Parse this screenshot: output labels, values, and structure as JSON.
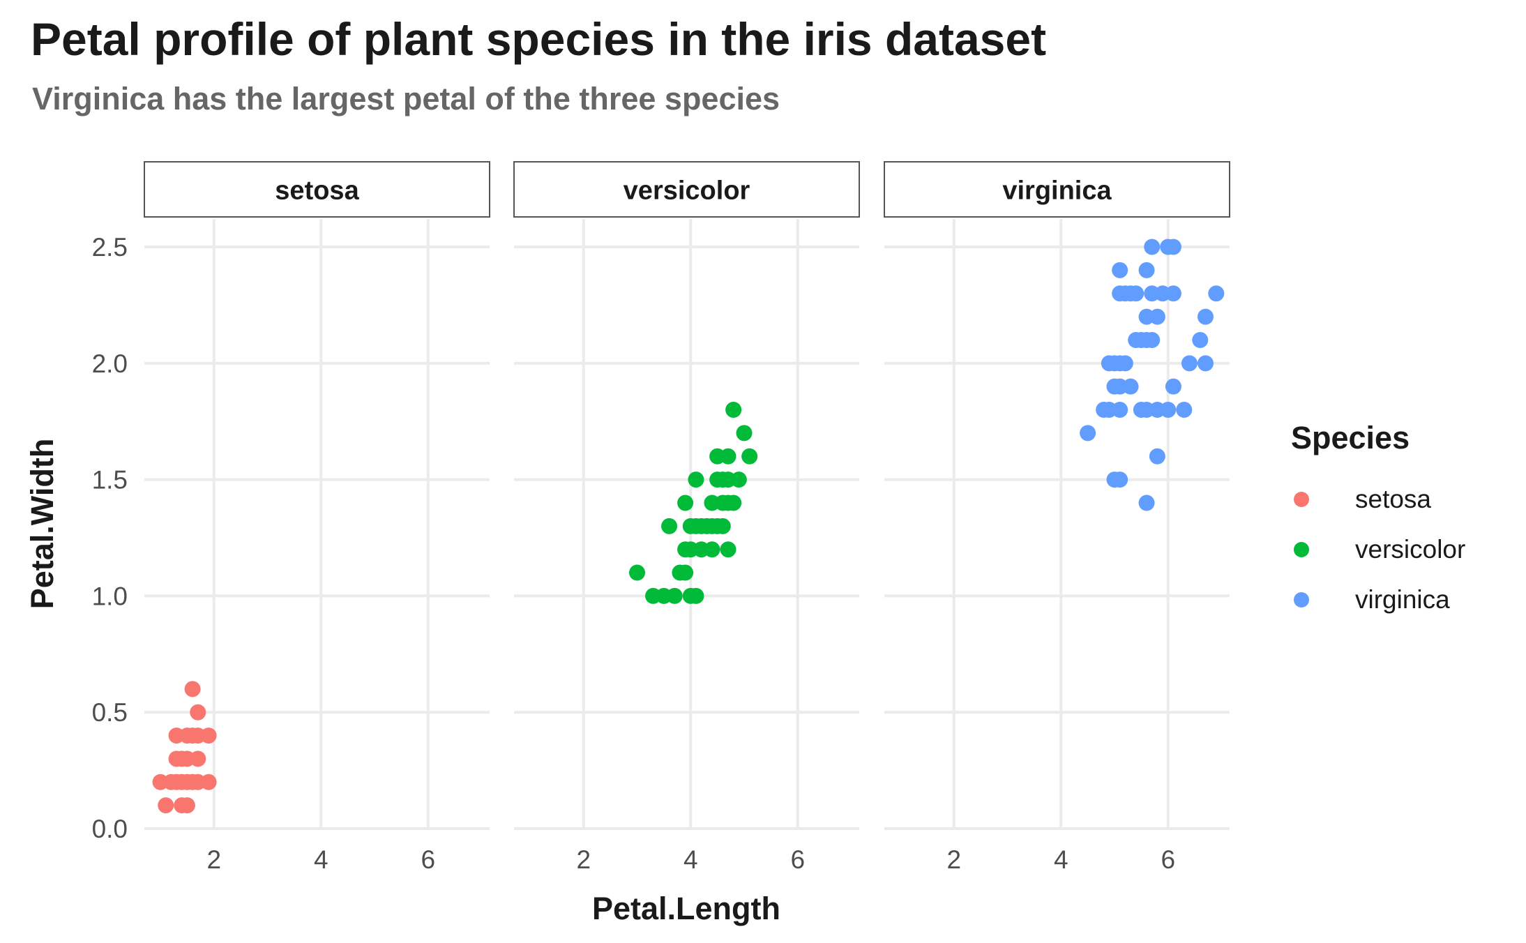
{
  "title": "Petal profile of plant species in the iris dataset",
  "subtitle": "Virginica has the largest petal of the three species",
  "legend": {
    "title": "Species",
    "items": [
      {
        "label": "setosa",
        "color": "#F8766D"
      },
      {
        "label": "versicolor",
        "color": "#00BA38"
      },
      {
        "label": "virginica",
        "color": "#619CFF"
      }
    ]
  },
  "chart_data": {
    "type": "scatter",
    "facet_by": "Species",
    "xlabel": "Petal.Length",
    "ylabel": "Petal.Width",
    "xlim": [
      0.7,
      7.15
    ],
    "ylim": [
      0,
      2.62
    ],
    "xticks": [
      2,
      4,
      6
    ],
    "xtick_labels": [
      "2",
      "4",
      "6"
    ],
    "yticks": [
      0,
      0.5,
      1,
      1.5,
      2,
      2.5
    ],
    "ytick_labels": [
      "0.0",
      "0.5",
      "1.0",
      "1.5",
      "2.0",
      "2.5"
    ],
    "grid": true,
    "legend_position": "right",
    "panels": [
      {
        "label": "setosa",
        "color": "#F8766D",
        "points": [
          [
            1.1,
            0.1
          ],
          [
            1.4,
            0.1
          ],
          [
            1.5,
            0.1
          ],
          [
            1.0,
            0.2
          ],
          [
            1.2,
            0.2
          ],
          [
            1.3,
            0.2
          ],
          [
            1.4,
            0.2
          ],
          [
            1.5,
            0.2
          ],
          [
            1.6,
            0.2
          ],
          [
            1.7,
            0.2
          ],
          [
            1.9,
            0.2
          ],
          [
            1.3,
            0.3
          ],
          [
            1.4,
            0.3
          ],
          [
            1.5,
            0.3
          ],
          [
            1.7,
            0.3
          ],
          [
            1.3,
            0.4
          ],
          [
            1.5,
            0.4
          ],
          [
            1.6,
            0.4
          ],
          [
            1.7,
            0.4
          ],
          [
            1.9,
            0.4
          ],
          [
            1.7,
            0.5
          ],
          [
            1.6,
            0.6
          ]
        ]
      },
      {
        "label": "versicolor",
        "color": "#00BA38",
        "points": [
          [
            3.0,
            1.1
          ],
          [
            3.3,
            1.0
          ],
          [
            3.5,
            1.0
          ],
          [
            3.7,
            1.0
          ],
          [
            4.0,
            1.0
          ],
          [
            4.1,
            1.0
          ],
          [
            3.8,
            1.1
          ],
          [
            3.9,
            1.1
          ],
          [
            3.6,
            1.3
          ],
          [
            3.9,
            1.2
          ],
          [
            4.0,
            1.2
          ],
          [
            4.2,
            1.2
          ],
          [
            4.4,
            1.2
          ],
          [
            4.7,
            1.2
          ],
          [
            3.9,
            1.4
          ],
          [
            4.0,
            1.3
          ],
          [
            4.1,
            1.3
          ],
          [
            4.2,
            1.3
          ],
          [
            4.3,
            1.3
          ],
          [
            4.4,
            1.3
          ],
          [
            4.5,
            1.3
          ],
          [
            4.6,
            1.3
          ],
          [
            4.1,
            1.5
          ],
          [
            4.4,
            1.4
          ],
          [
            4.6,
            1.4
          ],
          [
            4.7,
            1.4
          ],
          [
            4.8,
            1.4
          ],
          [
            4.5,
            1.5
          ],
          [
            4.6,
            1.5
          ],
          [
            4.7,
            1.5
          ],
          [
            4.9,
            1.5
          ],
          [
            4.5,
            1.6
          ],
          [
            4.7,
            1.6
          ],
          [
            5.1,
            1.6
          ],
          [
            5.0,
            1.7
          ],
          [
            4.8,
            1.8
          ]
        ]
      },
      {
        "label": "virginica",
        "color": "#619CFF",
        "points": [
          [
            4.5,
            1.7
          ],
          [
            5.0,
            1.5
          ],
          [
            5.1,
            1.5
          ],
          [
            5.6,
            1.4
          ],
          [
            5.8,
            1.6
          ],
          [
            4.8,
            1.8
          ],
          [
            4.9,
            1.8
          ],
          [
            5.1,
            1.8
          ],
          [
            5.5,
            1.8
          ],
          [
            5.6,
            1.8
          ],
          [
            5.8,
            1.8
          ],
          [
            6.0,
            1.8
          ],
          [
            6.3,
            1.8
          ],
          [
            5.0,
            1.9
          ],
          [
            5.1,
            1.9
          ],
          [
            5.3,
            1.9
          ],
          [
            6.1,
            1.9
          ],
          [
            4.9,
            2.0
          ],
          [
            5.0,
            2.0
          ],
          [
            5.1,
            2.0
          ],
          [
            5.2,
            2.0
          ],
          [
            6.4,
            2.0
          ],
          [
            6.7,
            2.0
          ],
          [
            5.4,
            2.1
          ],
          [
            5.5,
            2.1
          ],
          [
            5.6,
            2.1
          ],
          [
            5.7,
            2.1
          ],
          [
            6.6,
            2.1
          ],
          [
            5.6,
            2.2
          ],
          [
            5.8,
            2.2
          ],
          [
            6.7,
            2.2
          ],
          [
            5.1,
            2.3
          ],
          [
            5.2,
            2.3
          ],
          [
            5.3,
            2.3
          ],
          [
            5.4,
            2.3
          ],
          [
            5.7,
            2.3
          ],
          [
            5.9,
            2.3
          ],
          [
            6.1,
            2.3
          ],
          [
            6.9,
            2.3
          ],
          [
            5.1,
            2.4
          ],
          [
            5.6,
            2.4
          ],
          [
            5.7,
            2.5
          ],
          [
            6.0,
            2.5
          ],
          [
            6.1,
            2.5
          ]
        ]
      }
    ]
  }
}
